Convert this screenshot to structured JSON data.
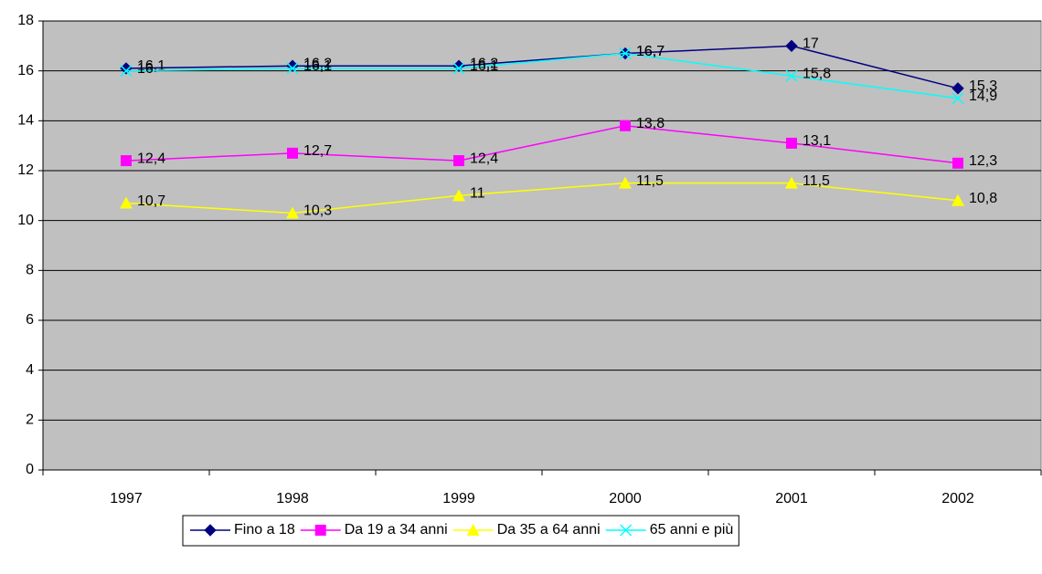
{
  "chart_data": {
    "type": "line",
    "categories": [
      "1997",
      "1998",
      "1999",
      "2000",
      "2001",
      "2002"
    ],
    "series": [
      {
        "name": "Fino a 18",
        "color": "#000080",
        "marker": "diamond",
        "values": [
          16.1,
          16.2,
          16.2,
          16.7,
          17,
          15.3
        ],
        "value_labels": [
          "16,1",
          "16,2",
          "16,2",
          "16,7",
          "17",
          "15,3"
        ]
      },
      {
        "name": "Da 19 a 34 anni",
        "color": "#FF00FF",
        "marker": "square",
        "values": [
          12.4,
          12.7,
          12.4,
          13.8,
          13.1,
          12.3
        ],
        "value_labels": [
          "12,4",
          "12,7",
          "12,4",
          "13,8",
          "13,1",
          "12,3"
        ]
      },
      {
        "name": "Da 35 a 64 anni",
        "color": "#FFFF00",
        "marker": "triangle",
        "values": [
          10.7,
          10.3,
          11,
          11.5,
          11.5,
          10.8
        ],
        "value_labels": [
          "10,7",
          "10,3",
          "11",
          "11,5",
          "11,5",
          "10,8"
        ]
      },
      {
        "name": "65 anni e più",
        "color": "#00FFFF",
        "marker": "x",
        "values": [
          16,
          16.1,
          16.1,
          16.7,
          15.8,
          14.9
        ],
        "value_labels": [
          "16",
          "16,1",
          "16,1",
          "16,7",
          "15,8",
          "14,9"
        ]
      }
    ],
    "ylim": [
      0,
      18
    ],
    "yticks": [
      0,
      2,
      4,
      6,
      8,
      10,
      12,
      14,
      16,
      18
    ],
    "grid": true,
    "legend": "bottom",
    "plot_background": "#C0C0C0"
  }
}
